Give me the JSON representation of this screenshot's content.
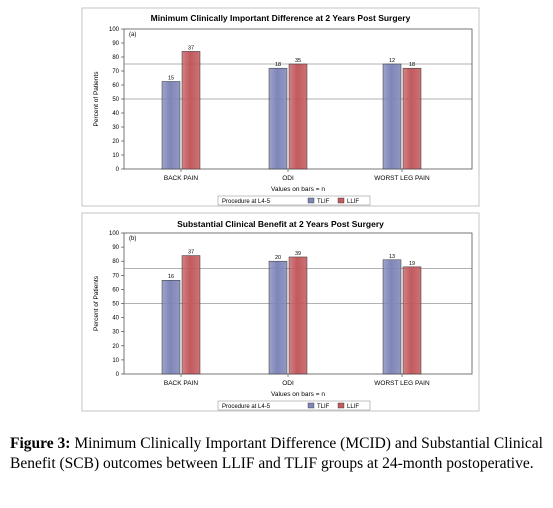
{
  "chart_data": [
    {
      "type": "bar",
      "title": "Minimum Clinically Important Difference at 2 Years Post Surgery",
      "panel_label": "(a)",
      "ylabel": "Percent of Patients",
      "xlabel": "Values on bars = n",
      "ylim": [
        0,
        100
      ],
      "yticks": [
        0,
        10,
        20,
        30,
        40,
        50,
        60,
        70,
        80,
        90,
        100
      ],
      "reference_lines": [
        50,
        75
      ],
      "categories": [
        "BACK PAIN",
        "ODI",
        "WORST LEG PAIN"
      ],
      "legend_title": "Procedure at L4-5",
      "series": [
        {
          "name": "TLIF",
          "color": "#7f86b8",
          "values": [
            62.5,
            72,
            75
          ],
          "labels": [
            "15",
            "18",
            "12"
          ]
        },
        {
          "name": "LLIF",
          "color": "#c25a5e",
          "values": [
            84,
            75,
            72
          ],
          "labels": [
            "37",
            "35",
            "18"
          ]
        }
      ]
    },
    {
      "type": "bar",
      "title": "Substantial Clinical Benefit at 2 Years Post Surgery",
      "panel_label": "(b)",
      "ylabel": "Percent of Patients",
      "xlabel": "Values on bars = n",
      "ylim": [
        0,
        100
      ],
      "yticks": [
        0,
        10,
        20,
        30,
        40,
        50,
        60,
        70,
        80,
        90,
        100
      ],
      "reference_lines": [
        50,
        75
      ],
      "categories": [
        "BACK PAIN",
        "ODI",
        "WORST LEG PAIN"
      ],
      "legend_title": "Procedure at L4-5",
      "series": [
        {
          "name": "TLIF",
          "color": "#7f86b8",
          "values": [
            66.5,
            80,
            81
          ],
          "labels": [
            "16",
            "20",
            "13"
          ]
        },
        {
          "name": "LLIF",
          "color": "#c25a5e",
          "values": [
            84,
            83,
            76
          ],
          "labels": [
            "37",
            "39",
            "19"
          ]
        }
      ]
    }
  ],
  "caption": {
    "label": "Figure 3:",
    "text": " Minimum Clinically Important Difference (MCID) and Substantial Clinical Benefit (SCB) outcomes between LLIF and TLIF groups at 24-month postoperative."
  }
}
